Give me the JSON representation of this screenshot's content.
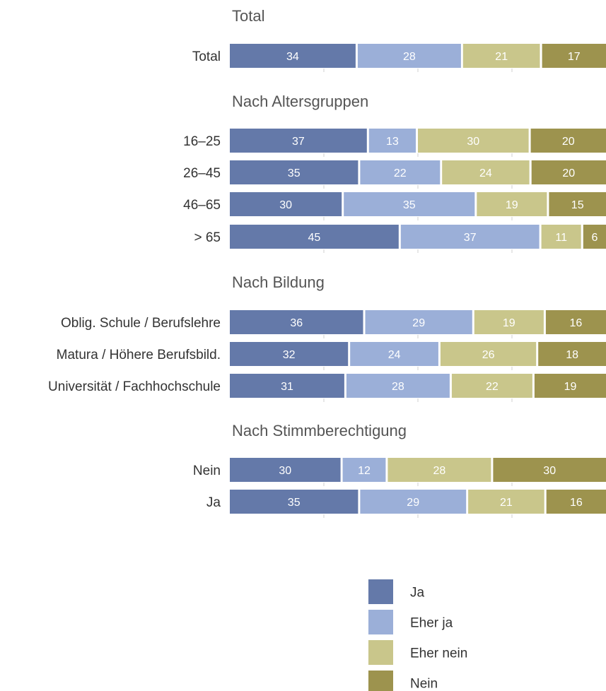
{
  "chart_data": {
    "type": "bar",
    "orientation": "horizontal",
    "stacked": true,
    "percent": true,
    "xlim": [
      0,
      100
    ],
    "legend_position": "bottom-right",
    "series": [
      {
        "name": "Ja",
        "color": "#6479a9"
      },
      {
        "name": "Eher ja",
        "color": "#9bafd8"
      },
      {
        "name": "Eher nein",
        "color": "#c9c68b"
      },
      {
        "name": "Nein",
        "color": "#9d934e"
      }
    ],
    "groups": [
      {
        "title": "Total",
        "rows": [
          {
            "label": "Total",
            "values": [
              34,
              28,
              21,
              17
            ]
          }
        ]
      },
      {
        "title": "Nach Altersgruppen",
        "rows": [
          {
            "label": "16–25",
            "values": [
              37,
              13,
              30,
              20
            ]
          },
          {
            "label": "26–45",
            "values": [
              35,
              22,
              24,
              20
            ]
          },
          {
            "label": "46–65",
            "values": [
              30,
              35,
              19,
              15
            ]
          },
          {
            "label": "> 65",
            "values": [
              45,
              37,
              11,
              6
            ]
          }
        ]
      },
      {
        "title": "Nach Bildung",
        "rows": [
          {
            "label": "Oblig. Schule / Berufslehre",
            "values": [
              36,
              29,
              19,
              16
            ]
          },
          {
            "label": "Matura / Höhere Berufsbild.",
            "values": [
              32,
              24,
              26,
              18
            ]
          },
          {
            "label": "Universität / Fachhochschule",
            "values": [
              31,
              28,
              22,
              19
            ]
          }
        ]
      },
      {
        "title": "Nach Stimmberechtigung",
        "rows": [
          {
            "label": "Nein",
            "values": [
              30,
              12,
              28,
              30
            ]
          },
          {
            "label": "Ja",
            "values": [
              35,
              29,
              21,
              16
            ]
          }
        ]
      }
    ]
  }
}
